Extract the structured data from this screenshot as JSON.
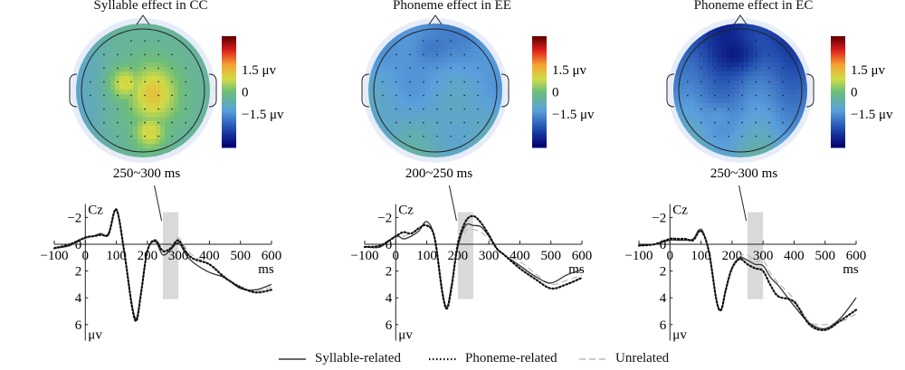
{
  "chart_data": [
    {
      "type": "line",
      "title": "Syllable effect in CC",
      "topomap": {
        "window_label": "250~300 ms",
        "colorbar_labels": [
          "1.5 μv",
          "0",
          "−1.5 μv"
        ],
        "colorbar_range": [
          -2.5,
          2.5
        ],
        "pattern": "positive-central-right",
        "peak_value": 1.2
      },
      "channel": "Cz",
      "xlabel": "ms",
      "ylabel": "μv",
      "xlim": [
        -100,
        600
      ],
      "ylim": [
        -3,
        7
      ],
      "y_inverted": true,
      "xticks": [
        -100,
        0,
        100,
        200,
        300,
        400,
        500,
        600
      ],
      "xtick_labels": [
        "−100",
        "0",
        "100",
        "200",
        "300",
        "400",
        "500",
        "600"
      ],
      "yticks": [
        -2,
        0,
        2,
        4,
        6
      ],
      "ytick_labels": [
        "−2",
        "0",
        "2",
        "4",
        "6"
      ],
      "highlight_window": [
        250,
        300
      ],
      "x": [
        -100,
        -50,
        0,
        25,
        50,
        75,
        100,
        125,
        150,
        165,
        180,
        200,
        225,
        250,
        275,
        300,
        325,
        350,
        400,
        450,
        500,
        550,
        600
      ],
      "series": [
        {
          "name": "Syllable-related",
          "style": "solid",
          "values": [
            0.3,
            0.1,
            -0.5,
            -0.6,
            -0.8,
            -0.7,
            -2.6,
            0.5,
            4.5,
            5.5,
            3.5,
            0.5,
            -0.2,
            0.8,
            0.4,
            -0.1,
            0.8,
            1.4,
            2.1,
            2.5,
            3.3,
            3.4,
            3.0
          ]
        },
        {
          "name": "Phoneme-related",
          "style": "dotted",
          "values": [
            0.3,
            0.0,
            -0.5,
            -0.6,
            -0.7,
            -0.8,
            -2.6,
            0.5,
            4.6,
            5.7,
            3.6,
            0.5,
            -0.3,
            0.5,
            0.3,
            -0.3,
            0.6,
            1.1,
            1.5,
            2.5,
            3.2,
            3.6,
            3.4
          ]
        },
        {
          "name": "Unrelated",
          "style": "dashed",
          "values": [
            0.2,
            0.1,
            -0.4,
            -0.6,
            -0.7,
            -0.7,
            -2.5,
            0.5,
            4.4,
            5.5,
            3.5,
            0.5,
            -0.2,
            0.6,
            0.2,
            -0.5,
            0.3,
            0.9,
            1.5,
            2.4,
            3.2,
            3.5,
            3.2
          ]
        }
      ]
    },
    {
      "type": "line",
      "title": "Phoneme effect in EE",
      "topomap": {
        "window_label": "200~250 ms",
        "colorbar_labels": [
          "1.5 μv",
          "0",
          "−1.5 μv"
        ],
        "colorbar_range": [
          -2.5,
          2.5
        ],
        "pattern": "mild-negative-diffuse",
        "peak_value": -1.0
      },
      "channel": "Cz",
      "xlabel": "ms",
      "ylabel": "μv",
      "xlim": [
        -100,
        600
      ],
      "ylim": [
        -3,
        7
      ],
      "y_inverted": true,
      "xticks": [
        -100,
        0,
        100,
        200,
        300,
        400,
        500,
        600
      ],
      "xtick_labels": [
        "−100",
        "0",
        "100",
        "200",
        "300",
        "400",
        "500",
        "600"
      ],
      "yticks": [
        -2,
        0,
        2,
        4,
        6
      ],
      "ytick_labels": [
        "−2",
        "0",
        "2",
        "4",
        "6"
      ],
      "highlight_window": [
        200,
        250
      ],
      "x": [
        -100,
        -50,
        0,
        25,
        50,
        75,
        100,
        125,
        150,
        165,
        180,
        200,
        225,
        250,
        275,
        300,
        325,
        350,
        400,
        450,
        500,
        550,
        600
      ],
      "series": [
        {
          "name": "Syllable-related",
          "style": "solid",
          "values": [
            0.2,
            0.2,
            -0.6,
            -0.4,
            -0.6,
            -1.0,
            -1.7,
            -0.5,
            3.5,
            4.7,
            3.0,
            0.2,
            -1.4,
            -1.4,
            -1.3,
            -0.6,
            0.3,
            0.8,
            1.6,
            2.4,
            2.9,
            2.3,
            1.9
          ]
        },
        {
          "name": "Phoneme-related",
          "style": "dotted",
          "values": [
            0.2,
            0.1,
            -0.6,
            -0.9,
            -0.8,
            -1.2,
            -1.4,
            -0.5,
            3.6,
            4.8,
            3.2,
            0.0,
            -1.7,
            -2.1,
            -1.6,
            -0.7,
            0.3,
            0.8,
            1.8,
            2.6,
            3.3,
            3.0,
            2.5
          ]
        },
        {
          "name": "Unrelated",
          "style": "dashed",
          "values": [
            0.2,
            0.1,
            -0.5,
            -0.6,
            -0.8,
            -1.2,
            -1.5,
            -0.5,
            3.4,
            4.6,
            3.0,
            0.3,
            -1.0,
            -1.1,
            -0.9,
            -0.4,
            0.3,
            0.8,
            1.3,
            2.2,
            3.0,
            2.7,
            2.3
          ]
        }
      ]
    },
    {
      "type": "line",
      "title": "Phoneme effect in EC",
      "topomap": {
        "window_label": "250~300 ms",
        "colorbar_labels": [
          "1.5 μv",
          "0",
          "−1.5 μv"
        ],
        "colorbar_range": [
          -2.5,
          2.5
        ],
        "pattern": "negative-frontal",
        "peak_value": -1.8
      },
      "channel": "Cz",
      "xlabel": "ms",
      "ylabel": "μv",
      "xlim": [
        -100,
        600
      ],
      "ylim": [
        -3,
        7
      ],
      "y_inverted": true,
      "xticks": [
        -100,
        0,
        100,
        200,
        300,
        400,
        500,
        600
      ],
      "xtick_labels": [
        "−100",
        "0",
        "100",
        "200",
        "300",
        "400",
        "500",
        "600"
      ],
      "yticks": [
        -2,
        0,
        2,
        4,
        6
      ],
      "ytick_labels": [
        "−2",
        "0",
        "2",
        "4",
        "6"
      ],
      "highlight_window": [
        250,
        300
      ],
      "x": [
        -100,
        -50,
        0,
        25,
        50,
        75,
        100,
        125,
        150,
        165,
        180,
        200,
        225,
        250,
        275,
        300,
        325,
        350,
        400,
        450,
        500,
        550,
        600
      ],
      "series": [
        {
          "name": "Syllable-related",
          "style": "solid",
          "values": [
            0.1,
            0.0,
            -0.3,
            -0.3,
            -0.3,
            -0.4,
            -1.1,
            0.5,
            4.2,
            4.9,
            3.4,
            1.8,
            1.0,
            1.2,
            1.5,
            1.6,
            2.5,
            3.1,
            4.6,
            5.9,
            6.3,
            5.5,
            4.0
          ]
        },
        {
          "name": "Phoneme-related",
          "style": "dotted",
          "values": [
            0.1,
            0.0,
            -0.4,
            -0.4,
            -0.4,
            -0.3,
            -1.0,
            0.5,
            4.2,
            4.9,
            3.4,
            1.8,
            1.1,
            1.5,
            1.8,
            2.0,
            3.1,
            3.9,
            4.3,
            6.0,
            6.4,
            5.7,
            4.9
          ]
        },
        {
          "name": "Unrelated",
          "style": "dashed",
          "values": [
            0.1,
            0.0,
            -0.3,
            -0.4,
            -0.3,
            -0.4,
            -1.2,
            0.5,
            4.1,
            4.8,
            3.3,
            1.7,
            0.9,
            0.8,
            1.3,
            1.2,
            2.2,
            2.9,
            4.1,
            5.8,
            6.0,
            5.8,
            5.2
          ]
        }
      ]
    }
  ],
  "legend": {
    "items": [
      {
        "label": "Syllable-related",
        "style": "solid",
        "color": "#333333"
      },
      {
        "label": "Phoneme-related",
        "style": "dotted",
        "color": "#111111"
      },
      {
        "label": "Unrelated",
        "style": "dashed",
        "color": "#bbbbbb"
      }
    ],
    "placement": "bottom-center"
  }
}
